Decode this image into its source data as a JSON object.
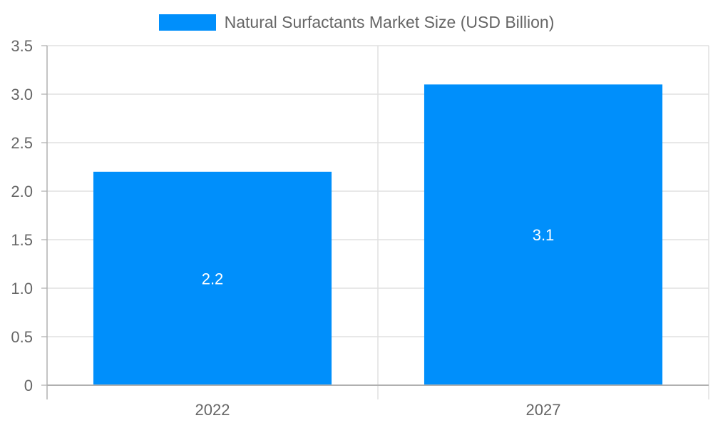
{
  "chart_data": {
    "type": "bar",
    "title": "",
    "categories": [
      "2022",
      "2027"
    ],
    "series": [
      {
        "name": "Natural Surfactants Market Size (USD Billion)",
        "values": [
          2.2,
          3.1
        ],
        "color": "#008ffb"
      }
    ],
    "values": [
      2.2,
      3.1
    ],
    "xlabel": "",
    "ylabel": "",
    "ylim": [
      0,
      3.5
    ],
    "yticks": [
      "0",
      "0.5",
      "1.0",
      "1.5",
      "2.0",
      "2.5",
      "3.0",
      "3.5"
    ],
    "grid": true,
    "legend_position": "top",
    "data_labels": [
      "2.2",
      "3.1"
    ]
  },
  "legend": {
    "label": "Natural Surfactants Market Size (USD Billion)",
    "color": "#008ffb"
  },
  "x_axis": {
    "ticks": [
      "2022",
      "2027"
    ]
  },
  "y_axis": {
    "ticks": [
      "0",
      "0.5",
      "1.0",
      "1.5",
      "2.0",
      "2.5",
      "3.0",
      "3.5"
    ]
  },
  "bars": [
    {
      "category": "2022",
      "value": 2.2,
      "label": "2.2"
    },
    {
      "category": "2027",
      "value": 3.1,
      "label": "3.1"
    }
  ]
}
